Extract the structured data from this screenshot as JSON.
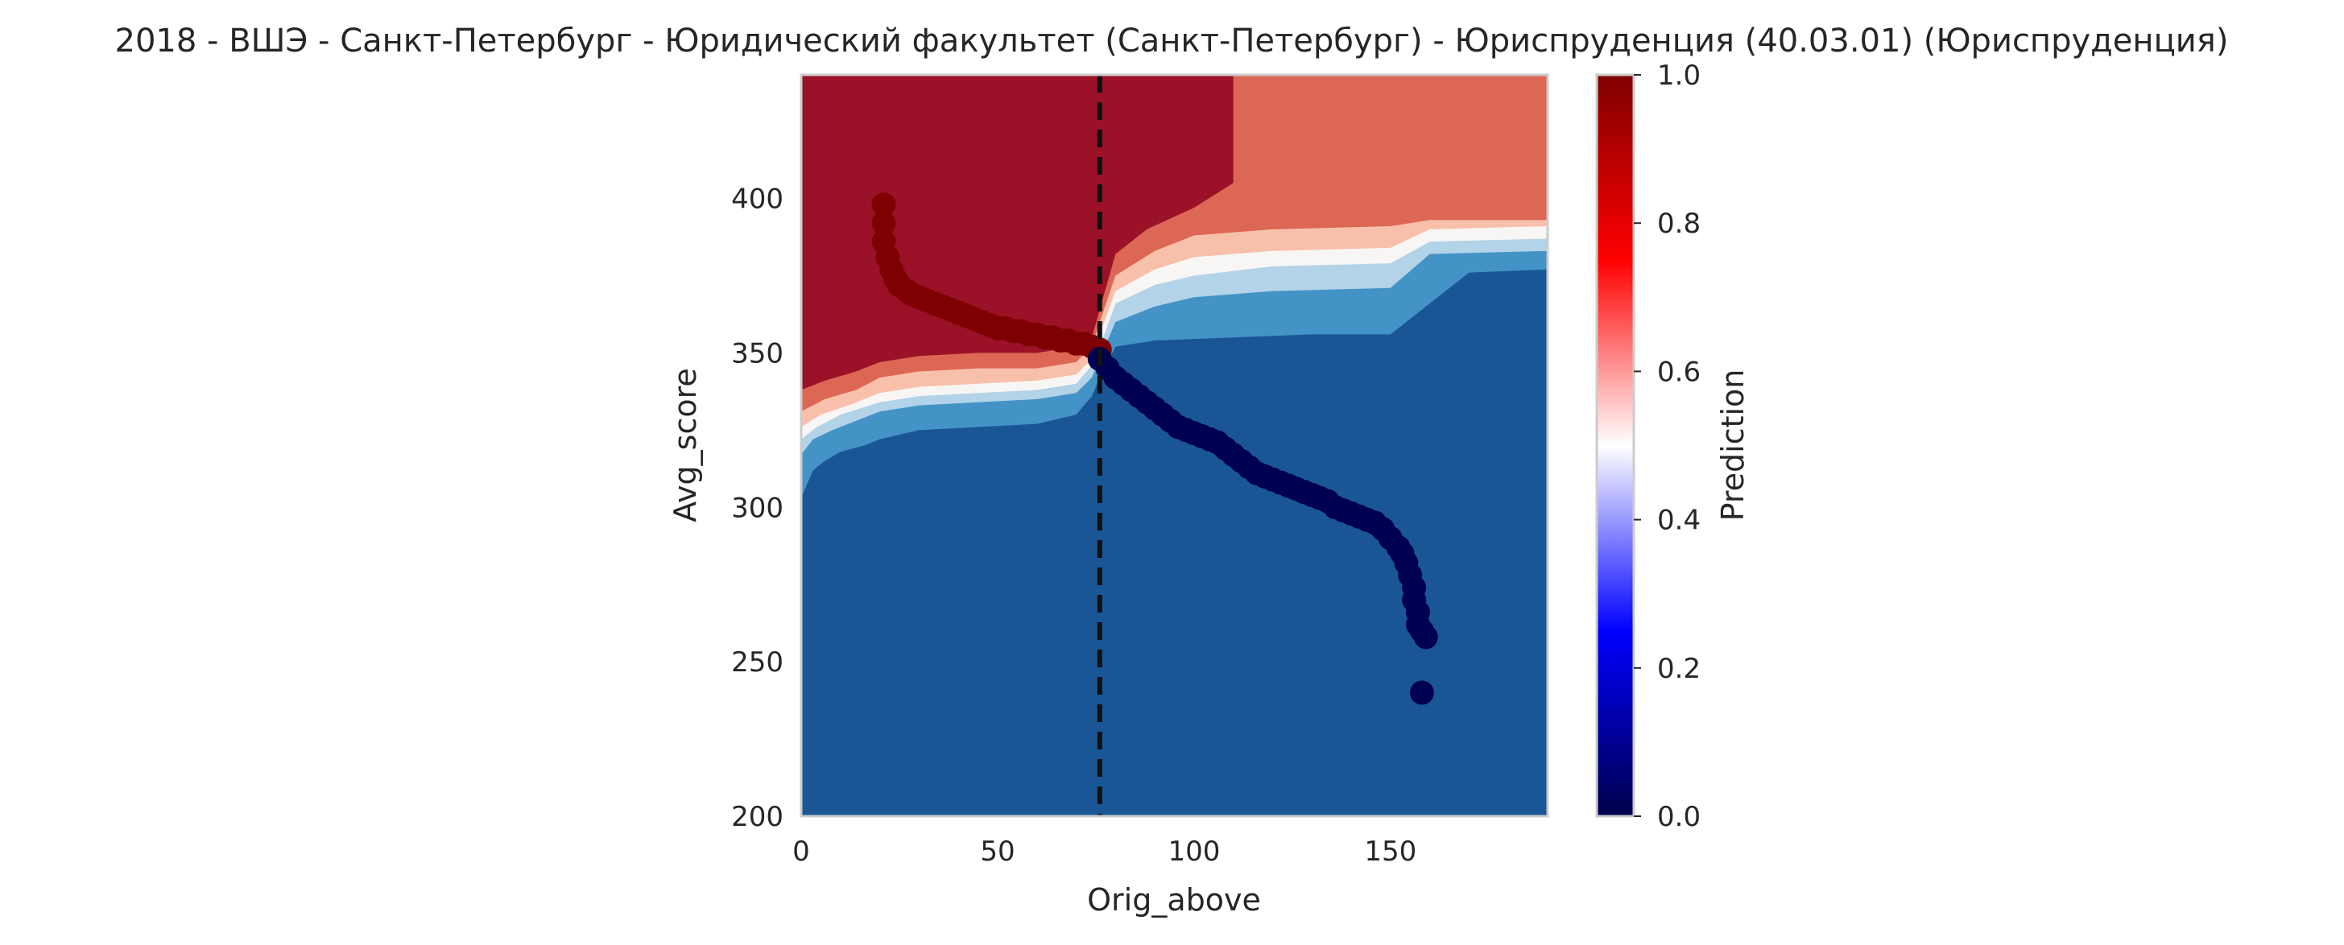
{
  "chart_data": {
    "type": "heatmap",
    "title": "2018 - ВШЭ - Санкт-Петербург - Юридический факультет (Санкт-Петербург) - Юриспруденция (40.03.01) (Юриспруденция)",
    "xlabel": "Orig_above",
    "ylabel": "Avg_score",
    "xlim": [
      0,
      190
    ],
    "ylim": [
      200,
      440
    ],
    "xticks": [
      0,
      50,
      100,
      150
    ],
    "yticks": [
      200,
      250,
      300,
      350,
      400
    ],
    "grid": false,
    "threshold_line": {
      "x": 76,
      "style": "dashed",
      "color": "#111111"
    },
    "colorbar": {
      "label": "Prediction",
      "range": [
        0,
        1
      ],
      "ticks": [
        0.0,
        0.2,
        0.4,
        0.6,
        0.8,
        1.0
      ],
      "tick_labels": [
        "0.0",
        "0.2",
        "0.4",
        "0.6",
        "0.8",
        "1.0"
      ],
      "colormap": "seismic"
    },
    "contour_levels": [
      {
        "level": 0.0,
        "color": "#1a5696"
      },
      {
        "level": 0.2,
        "color": "#4493c6"
      },
      {
        "level": 0.35,
        "color": "#b2d3e8"
      },
      {
        "level": 0.5,
        "color": "#f8f6f5"
      },
      {
        "level": 0.65,
        "color": "#f8c0aa"
      },
      {
        "level": 0.8,
        "color": "#dc6755"
      },
      {
        "level": 1.0,
        "color": "#9b1127"
      }
    ],
    "scatter_class_1": {
      "color": "#7f0000",
      "x": [
        21,
        21,
        21,
        22,
        23,
        24,
        25,
        27,
        28,
        30,
        32,
        34,
        36,
        38,
        40,
        42,
        44,
        46,
        48,
        50,
        52,
        54,
        56,
        58,
        60,
        62,
        64,
        66,
        68,
        70,
        72,
        74,
        76
      ],
      "y": [
        398,
        392,
        386,
        381,
        377,
        374,
        372,
        370,
        369,
        368,
        367,
        366,
        365,
        364,
        363,
        362,
        361,
        360,
        359,
        358,
        358,
        357,
        357,
        356,
        356,
        355,
        355,
        354,
        354,
        353,
        353,
        352,
        351
      ]
    },
    "scatter_class_0": {
      "color": "#000050",
      "x": [
        76,
        78,
        80,
        82,
        84,
        86,
        88,
        90,
        92,
        94,
        96,
        98,
        100,
        102,
        104,
        106,
        108,
        110,
        112,
        114,
        116,
        118,
        120,
        122,
        124,
        126,
        128,
        130,
        132,
        134,
        136,
        138,
        140,
        142,
        144,
        146,
        148,
        150,
        152,
        153,
        154,
        155,
        156,
        156,
        157,
        157,
        158,
        159,
        158
      ],
      "y": [
        348,
        345,
        342,
        340,
        338,
        336,
        334,
        332,
        330,
        328,
        326,
        325,
        324,
        323,
        322,
        321,
        319,
        317,
        315,
        313,
        311,
        310,
        309,
        308,
        307,
        306,
        305,
        304,
        303,
        302,
        300,
        299,
        298,
        297,
        296,
        295,
        293,
        290,
        287,
        285,
        282,
        278,
        274,
        270,
        266,
        262,
        260,
        258,
        240
      ]
    }
  }
}
